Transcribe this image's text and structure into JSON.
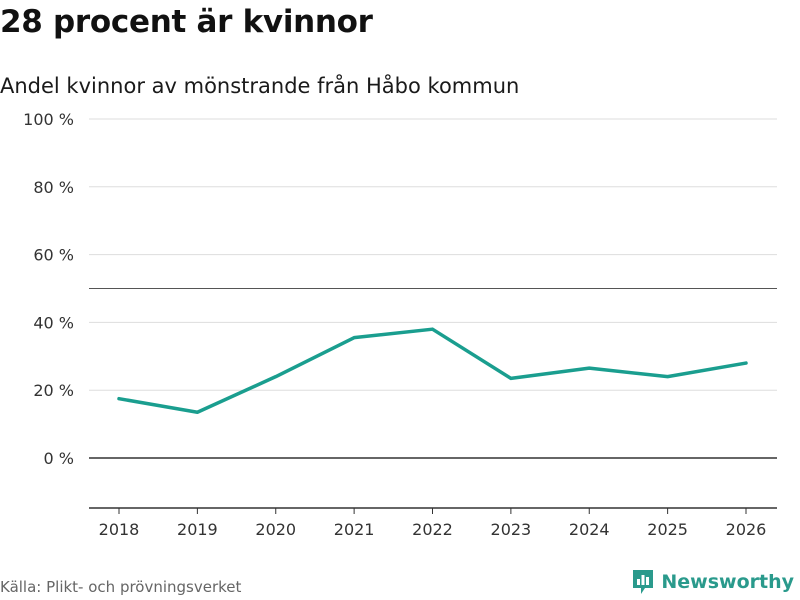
{
  "header": {
    "title": "28 procent är kvinnor",
    "subtitle": "Andel kvinnor av mönstrande från Håbo kommun"
  },
  "footer": {
    "source": "Källa: Plikt- och prövningsverket",
    "brand": "Newsworthy"
  },
  "colors": {
    "line": "#1a9e8f",
    "grid": "#dddddd",
    "zero_line": "#333333",
    "reference_line": "#555555",
    "brand": "#2a9a8c"
  },
  "chart_data": {
    "type": "line",
    "title": "28 procent är kvinnor",
    "subtitle": "Andel kvinnor av mönstrande från Håbo kommun",
    "xlabel": "",
    "ylabel": "",
    "categories": [
      "2018",
      "2019",
      "2020",
      "2021",
      "2022",
      "2023",
      "2024",
      "2025",
      "2026"
    ],
    "series": [
      {
        "name": "Andel kvinnor",
        "values": [
          17.5,
          13.5,
          24,
          35.5,
          38,
          23.5,
          26.5,
          24,
          28
        ]
      }
    ],
    "ylim": [
      -15,
      100
    ],
    "yticks": [
      0,
      20,
      40,
      60,
      80,
      100
    ],
    "ytick_labels": [
      "0 %",
      "20 %",
      "40 %",
      "60 %",
      "80 %",
      "100 %"
    ],
    "reference_line": 50,
    "grid": true,
    "legend": "none"
  }
}
